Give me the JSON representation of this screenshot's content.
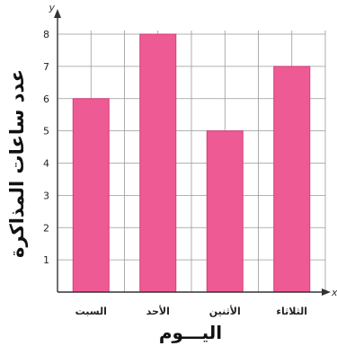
{
  "chart_data": {
    "type": "bar",
    "categories": [
      "السبت",
      "الأحد",
      "الأثنين",
      "الثلاثاء"
    ],
    "values": [
      6,
      8,
      5,
      7
    ],
    "xlabel": "اليـــوم",
    "ylabel": "عدد ساعات المذاكرة",
    "x_axis_letter": "x",
    "y_axis_letter": "y",
    "ylim": [
      0,
      8
    ],
    "yticks": [
      "1",
      "2",
      "3",
      "4",
      "5",
      "6",
      "7",
      "8"
    ],
    "grid": true,
    "colors": {
      "bar": "#ee5a94",
      "bar_edge": "#d23f7a",
      "grid": "#999999",
      "axis": "#333333"
    }
  }
}
